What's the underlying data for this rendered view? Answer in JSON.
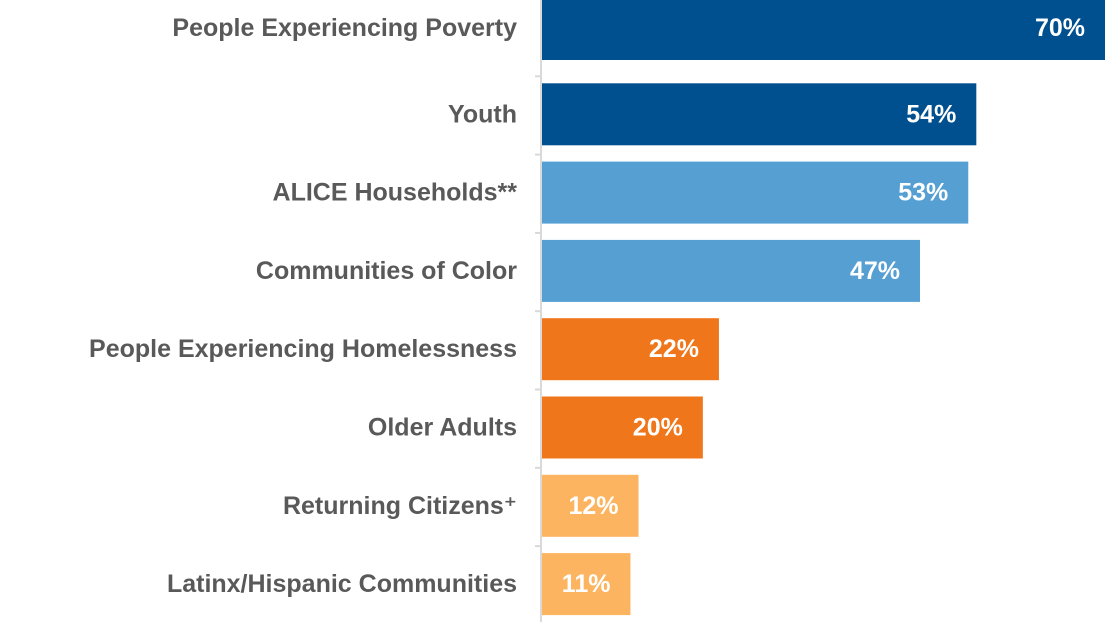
{
  "chart_data": {
    "type": "bar",
    "orientation": "horizontal",
    "categories": [
      "People Experiencing Poverty",
      "Youth",
      "ALICE Households**",
      "Communities of Color",
      "People Experiencing Homelessness",
      "Older Adults",
      "Returning Citizens⁺",
      "Latinx/Hispanic Communities"
    ],
    "values": [
      70,
      54,
      53,
      47,
      22,
      20,
      12,
      11
    ],
    "value_labels": [
      "70%",
      "54%",
      "53%",
      "47%",
      "22%",
      "20%",
      "12%",
      "11%"
    ],
    "colors": [
      "#004F8F",
      "#004F8F",
      "#559FD3",
      "#559FD3",
      "#F0761B",
      "#F0761B",
      "#FDB460",
      "#FDB460"
    ],
    "title": "",
    "xlabel": "",
    "ylabel": "",
    "xlim": [
      0,
      70
    ],
    "grid": false,
    "legend": "none"
  }
}
